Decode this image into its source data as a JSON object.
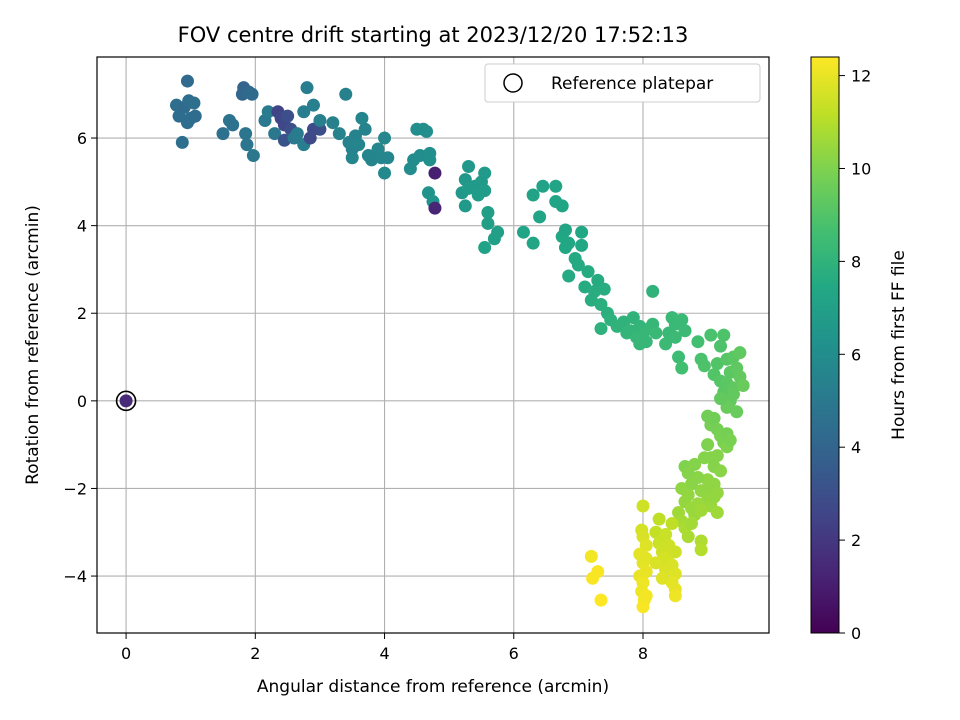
{
  "chart_data": {
    "type": "scatter",
    "title": "FOV centre drift starting at 2023/12/20 17:52:13",
    "xlabel": "Angular distance from reference (arcmin)",
    "ylabel": "Rotation from reference (arcmin)",
    "xlim": [
      -0.45,
      9.95
    ],
    "ylim": [
      -5.3,
      7.85
    ],
    "xticks": [
      0,
      2,
      4,
      6,
      8
    ],
    "yticks": [
      -4,
      -2,
      0,
      2,
      4,
      6
    ],
    "xtick_labels": [
      "0",
      "2",
      "4",
      "6",
      "8"
    ],
    "ytick_labels": [
      "−4",
      "−2",
      "0",
      "2",
      "4",
      "6"
    ],
    "grid": true,
    "legend": {
      "label": "Reference platepar",
      "position": "top-right"
    },
    "reference_point": {
      "x": 0,
      "y": 0
    },
    "colorbar": {
      "label": "Hours from first FF file",
      "range": [
        0,
        12.4
      ],
      "ticks": [
        0,
        2,
        4,
        6,
        8,
        10,
        12
      ],
      "tick_labels": [
        "0",
        "2",
        "4",
        "6",
        "8",
        "10",
        "12"
      ],
      "colormap": "viridis"
    },
    "points": [
      {
        "x": 0.0,
        "y": 0.0,
        "h": 1.5
      },
      {
        "x": 0.78,
        "y": 6.75,
        "h": 4.5
      },
      {
        "x": 0.82,
        "y": 6.5,
        "h": 4.4
      },
      {
        "x": 0.9,
        "y": 6.7,
        "h": 4.3
      },
      {
        "x": 0.95,
        "y": 6.35,
        "h": 4.4
      },
      {
        "x": 0.97,
        "y": 6.85,
        "h": 4.4
      },
      {
        "x": 1.05,
        "y": 6.8,
        "h": 4.5
      },
      {
        "x": 1.07,
        "y": 6.5,
        "h": 4.4
      },
      {
        "x": 0.95,
        "y": 7.3,
        "h": 4.3
      },
      {
        "x": 0.87,
        "y": 5.9,
        "h": 4.5
      },
      {
        "x": 1.0,
        "y": 6.45,
        "h": 4.4
      },
      {
        "x": 1.5,
        "y": 6.1,
        "h": 4.6
      },
      {
        "x": 1.6,
        "y": 6.4,
        "h": 4.7
      },
      {
        "x": 1.65,
        "y": 6.3,
        "h": 4.6
      },
      {
        "x": 1.8,
        "y": 7.0,
        "h": 4.1
      },
      {
        "x": 1.82,
        "y": 7.15,
        "h": 4.0
      },
      {
        "x": 1.85,
        "y": 6.1,
        "h": 4.8
      },
      {
        "x": 1.87,
        "y": 5.85,
        "h": 4.8
      },
      {
        "x": 1.9,
        "y": 7.05,
        "h": 4.2
      },
      {
        "x": 1.95,
        "y": 7.0,
        "h": 4.3
      },
      {
        "x": 1.97,
        "y": 5.6,
        "h": 4.9
      },
      {
        "x": 2.15,
        "y": 6.4,
        "h": 5.0
      },
      {
        "x": 2.2,
        "y": 6.6,
        "h": 5.1
      },
      {
        "x": 2.3,
        "y": 6.1,
        "h": 4.9
      },
      {
        "x": 2.35,
        "y": 6.6,
        "h": 2.5
      },
      {
        "x": 2.4,
        "y": 6.45,
        "h": 2.6
      },
      {
        "x": 2.45,
        "y": 6.3,
        "h": 2.6
      },
      {
        "x": 2.5,
        "y": 6.5,
        "h": 3.0
      },
      {
        "x": 2.55,
        "y": 6.2,
        "h": 3.0
      },
      {
        "x": 2.45,
        "y": 5.95,
        "h": 3.2
      },
      {
        "x": 2.6,
        "y": 6.0,
        "h": 5.0
      },
      {
        "x": 2.65,
        "y": 6.1,
        "h": 5.1
      },
      {
        "x": 2.75,
        "y": 6.6,
        "h": 5.2
      },
      {
        "x": 2.8,
        "y": 7.15,
        "h": 5.2
      },
      {
        "x": 2.75,
        "y": 5.85,
        "h": 5.2
      },
      {
        "x": 2.85,
        "y": 6.0,
        "h": 2.7
      },
      {
        "x": 2.9,
        "y": 6.2,
        "h": 2.8
      },
      {
        "x": 3.0,
        "y": 6.2,
        "h": 2.9
      },
      {
        "x": 2.9,
        "y": 6.75,
        "h": 5.3
      },
      {
        "x": 3.0,
        "y": 6.4,
        "h": 5.3
      },
      {
        "x": 3.2,
        "y": 6.35,
        "h": 5.4
      },
      {
        "x": 3.3,
        "y": 6.1,
        "h": 5.5
      },
      {
        "x": 3.4,
        "y": 7.0,
        "h": 5.4
      },
      {
        "x": 3.45,
        "y": 5.9,
        "h": 5.5
      },
      {
        "x": 3.5,
        "y": 5.75,
        "h": 5.5
      },
      {
        "x": 3.5,
        "y": 5.55,
        "h": 5.6
      },
      {
        "x": 3.55,
        "y": 6.05,
        "h": 5.5
      },
      {
        "x": 3.6,
        "y": 5.85,
        "h": 5.6
      },
      {
        "x": 3.65,
        "y": 6.45,
        "h": 5.6
      },
      {
        "x": 3.7,
        "y": 6.2,
        "h": 5.5
      },
      {
        "x": 3.75,
        "y": 5.6,
        "h": 5.6
      },
      {
        "x": 3.8,
        "y": 5.5,
        "h": 5.6
      },
      {
        "x": 3.9,
        "y": 5.75,
        "h": 5.7
      },
      {
        "x": 3.95,
        "y": 5.55,
        "h": 5.7
      },
      {
        "x": 4.0,
        "y": 6.0,
        "h": 5.7
      },
      {
        "x": 4.0,
        "y": 5.2,
        "h": 5.8
      },
      {
        "x": 4.05,
        "y": 5.55,
        "h": 5.7
      },
      {
        "x": 4.4,
        "y": 5.3,
        "h": 6.0
      },
      {
        "x": 4.45,
        "y": 5.5,
        "h": 6.0
      },
      {
        "x": 4.5,
        "y": 6.2,
        "h": 6.1
      },
      {
        "x": 4.55,
        "y": 5.6,
        "h": 6.0
      },
      {
        "x": 4.6,
        "y": 6.2,
        "h": 6.1
      },
      {
        "x": 4.65,
        "y": 6.15,
        "h": 6.1
      },
      {
        "x": 4.7,
        "y": 5.65,
        "h": 6.1
      },
      {
        "x": 4.7,
        "y": 5.5,
        "h": 6.1
      },
      {
        "x": 4.68,
        "y": 4.75,
        "h": 6.3
      },
      {
        "x": 4.75,
        "y": 4.55,
        "h": 6.4
      },
      {
        "x": 4.78,
        "y": 5.2,
        "h": 1.1
      },
      {
        "x": 4.78,
        "y": 4.4,
        "h": 1.3
      },
      {
        "x": 5.2,
        "y": 4.75,
        "h": 6.6
      },
      {
        "x": 5.25,
        "y": 5.05,
        "h": 6.6
      },
      {
        "x": 5.25,
        "y": 4.45,
        "h": 6.7
      },
      {
        "x": 5.3,
        "y": 5.35,
        "h": 6.6
      },
      {
        "x": 5.3,
        "y": 4.85,
        "h": 6.7
      },
      {
        "x": 5.4,
        "y": 4.9,
        "h": 6.7
      },
      {
        "x": 5.45,
        "y": 4.7,
        "h": 6.8
      },
      {
        "x": 5.5,
        "y": 5.0,
        "h": 6.7
      },
      {
        "x": 5.55,
        "y": 5.2,
        "h": 6.7
      },
      {
        "x": 5.55,
        "y": 4.8,
        "h": 6.8
      },
      {
        "x": 5.6,
        "y": 4.3,
        "h": 6.9
      },
      {
        "x": 5.6,
        "y": 4.05,
        "h": 6.9
      },
      {
        "x": 5.7,
        "y": 3.7,
        "h": 7.0
      },
      {
        "x": 5.75,
        "y": 3.85,
        "h": 7.0
      },
      {
        "x": 5.55,
        "y": 3.5,
        "h": 7.1
      },
      {
        "x": 6.15,
        "y": 3.85,
        "h": 7.2
      },
      {
        "x": 6.3,
        "y": 3.6,
        "h": 7.3
      },
      {
        "x": 6.3,
        "y": 4.7,
        "h": 7.1
      },
      {
        "x": 6.4,
        "y": 4.2,
        "h": 7.2
      },
      {
        "x": 6.45,
        "y": 4.9,
        "h": 7.1
      },
      {
        "x": 6.65,
        "y": 4.9,
        "h": 7.2
      },
      {
        "x": 6.65,
        "y": 4.55,
        "h": 7.2
      },
      {
        "x": 6.75,
        "y": 4.45,
        "h": 7.3
      },
      {
        "x": 6.75,
        "y": 3.75,
        "h": 7.4
      },
      {
        "x": 6.8,
        "y": 3.5,
        "h": 7.4
      },
      {
        "x": 6.8,
        "y": 3.9,
        "h": 7.3
      },
      {
        "x": 6.85,
        "y": 3.6,
        "h": 7.4
      },
      {
        "x": 6.85,
        "y": 2.85,
        "h": 7.5
      },
      {
        "x": 6.95,
        "y": 3.25,
        "h": 7.5
      },
      {
        "x": 7.0,
        "y": 3.1,
        "h": 7.5
      },
      {
        "x": 7.05,
        "y": 3.55,
        "h": 7.4
      },
      {
        "x": 7.05,
        "y": 3.85,
        "h": 7.4
      },
      {
        "x": 7.1,
        "y": 2.6,
        "h": 7.6
      },
      {
        "x": 7.15,
        "y": 2.95,
        "h": 7.6
      },
      {
        "x": 7.2,
        "y": 2.3,
        "h": 7.7
      },
      {
        "x": 7.25,
        "y": 2.5,
        "h": 7.7
      },
      {
        "x": 7.3,
        "y": 2.75,
        "h": 7.6
      },
      {
        "x": 7.35,
        "y": 2.2,
        "h": 7.8
      },
      {
        "x": 7.35,
        "y": 1.65,
        "h": 7.9
      },
      {
        "x": 7.4,
        "y": 2.55,
        "h": 7.7
      },
      {
        "x": 7.45,
        "y": 2.0,
        "h": 7.8
      },
      {
        "x": 7.5,
        "y": 1.85,
        "h": 7.9
      },
      {
        "x": 7.6,
        "y": 1.7,
        "h": 8.0
      },
      {
        "x": 7.7,
        "y": 1.8,
        "h": 8.0
      },
      {
        "x": 7.75,
        "y": 1.55,
        "h": 8.1
      },
      {
        "x": 7.8,
        "y": 1.6,
        "h": 8.1
      },
      {
        "x": 7.85,
        "y": 1.9,
        "h": 8.0
      },
      {
        "x": 7.9,
        "y": 1.45,
        "h": 8.2
      },
      {
        "x": 7.95,
        "y": 1.3,
        "h": 8.2
      },
      {
        "x": 7.95,
        "y": 1.7,
        "h": 8.1
      },
      {
        "x": 8.0,
        "y": 1.5,
        "h": 8.2
      },
      {
        "x": 8.05,
        "y": 1.35,
        "h": 8.2
      },
      {
        "x": 8.1,
        "y": 1.65,
        "h": 8.2
      },
      {
        "x": 8.15,
        "y": 1.75,
        "h": 8.2
      },
      {
        "x": 8.15,
        "y": 2.5,
        "h": 8.0
      },
      {
        "x": 8.2,
        "y": 1.55,
        "h": 8.3
      },
      {
        "x": 8.35,
        "y": 1.3,
        "h": 8.4
      },
      {
        "x": 8.4,
        "y": 1.55,
        "h": 8.3
      },
      {
        "x": 8.45,
        "y": 1.9,
        "h": 8.3
      },
      {
        "x": 8.5,
        "y": 1.75,
        "h": 8.3
      },
      {
        "x": 8.5,
        "y": 1.45,
        "h": 8.4
      },
      {
        "x": 8.55,
        "y": 1.0,
        "h": 8.5
      },
      {
        "x": 8.6,
        "y": 1.85,
        "h": 8.3
      },
      {
        "x": 8.6,
        "y": 0.75,
        "h": 8.6
      },
      {
        "x": 8.65,
        "y": 1.6,
        "h": 8.4
      },
      {
        "x": 8.85,
        "y": 1.35,
        "h": 8.6
      },
      {
        "x": 8.9,
        "y": 0.95,
        "h": 8.8
      },
      {
        "x": 8.95,
        "y": 0.8,
        "h": 8.9
      },
      {
        "x": 9.05,
        "y": 1.5,
        "h": 8.8
      },
      {
        "x": 9.1,
        "y": 0.6,
        "h": 9.0
      },
      {
        "x": 9.15,
        "y": 0.85,
        "h": 9.0
      },
      {
        "x": 9.2,
        "y": 1.25,
        "h": 8.9
      },
      {
        "x": 9.2,
        "y": 0.45,
        "h": 9.1
      },
      {
        "x": 9.25,
        "y": 1.5,
        "h": 8.9
      },
      {
        "x": 9.25,
        "y": 0.2,
        "h": 9.2
      },
      {
        "x": 9.3,
        "y": 0.95,
        "h": 9.1
      },
      {
        "x": 9.3,
        "y": 0.4,
        "h": 9.2
      },
      {
        "x": 9.35,
        "y": 0.65,
        "h": 9.2
      },
      {
        "x": 9.35,
        "y": 0.0,
        "h": 9.4
      },
      {
        "x": 9.4,
        "y": 1.0,
        "h": 9.2
      },
      {
        "x": 9.4,
        "y": 0.3,
        "h": 9.3
      },
      {
        "x": 9.45,
        "y": 0.75,
        "h": 9.3
      },
      {
        "x": 9.45,
        "y": -0.25,
        "h": 9.5
      },
      {
        "x": 9.5,
        "y": 0.55,
        "h": 9.4
      },
      {
        "x": 9.5,
        "y": 1.1,
        "h": 9.3
      },
      {
        "x": 9.55,
        "y": 0.35,
        "h": 9.5
      },
      {
        "x": 9.4,
        "y": 0.15,
        "h": 9.4
      },
      {
        "x": 9.3,
        "y": -0.15,
        "h": 9.5
      },
      {
        "x": 9.2,
        "y": 0.05,
        "h": 9.4
      },
      {
        "x": 9.0,
        "y": -0.35,
        "h": 9.7
      },
      {
        "x": 9.05,
        "y": -0.55,
        "h": 9.8
      },
      {
        "x": 9.1,
        "y": -0.4,
        "h": 9.7
      },
      {
        "x": 9.15,
        "y": -0.65,
        "h": 9.8
      },
      {
        "x": 9.2,
        "y": -0.8,
        "h": 9.9
      },
      {
        "x": 9.25,
        "y": -0.95,
        "h": 9.9
      },
      {
        "x": 9.3,
        "y": -0.75,
        "h": 9.8
      },
      {
        "x": 9.3,
        "y": -1.05,
        "h": 10.0
      },
      {
        "x": 9.35,
        "y": -0.9,
        "h": 9.9
      },
      {
        "x": 9.0,
        "y": -1.0,
        "h": 10.0
      },
      {
        "x": 9.05,
        "y": -1.3,
        "h": 10.1
      },
      {
        "x": 9.1,
        "y": -1.5,
        "h": 10.1
      },
      {
        "x": 9.15,
        "y": -1.25,
        "h": 10.1
      },
      {
        "x": 9.2,
        "y": -1.6,
        "h": 10.2
      },
      {
        "x": 9.0,
        "y": -1.8,
        "h": 10.3
      },
      {
        "x": 9.05,
        "y": -2.0,
        "h": 10.3
      },
      {
        "x": 9.1,
        "y": -1.9,
        "h": 10.3
      },
      {
        "x": 9.15,
        "y": -2.1,
        "h": 10.4
      },
      {
        "x": 9.0,
        "y": -2.25,
        "h": 10.4
      },
      {
        "x": 9.05,
        "y": -2.4,
        "h": 10.5
      },
      {
        "x": 9.1,
        "y": -2.2,
        "h": 10.4
      },
      {
        "x": 9.15,
        "y": -2.55,
        "h": 10.6
      },
      {
        "x": 8.65,
        "y": -1.5,
        "h": 10.0
      },
      {
        "x": 8.7,
        "y": -1.65,
        "h": 10.1
      },
      {
        "x": 8.75,
        "y": -1.9,
        "h": 10.2
      },
      {
        "x": 8.8,
        "y": -1.45,
        "h": 10.1
      },
      {
        "x": 8.85,
        "y": -1.75,
        "h": 10.2
      },
      {
        "x": 8.9,
        "y": -2.05,
        "h": 10.3
      },
      {
        "x": 8.95,
        "y": -1.3,
        "h": 10.1
      },
      {
        "x": 8.6,
        "y": -2.0,
        "h": 10.3
      },
      {
        "x": 8.65,
        "y": -2.3,
        "h": 10.4
      },
      {
        "x": 8.7,
        "y": -2.15,
        "h": 10.4
      },
      {
        "x": 8.75,
        "y": -2.45,
        "h": 10.5
      },
      {
        "x": 8.8,
        "y": -2.6,
        "h": 10.5
      },
      {
        "x": 8.85,
        "y": -2.35,
        "h": 10.5
      },
      {
        "x": 8.9,
        "y": -2.5,
        "h": 10.6
      },
      {
        "x": 8.55,
        "y": -2.55,
        "h": 10.6
      },
      {
        "x": 8.6,
        "y": -2.75,
        "h": 10.7
      },
      {
        "x": 8.65,
        "y": -2.9,
        "h": 10.8
      },
      {
        "x": 8.7,
        "y": -3.1,
        "h": 10.8
      },
      {
        "x": 8.75,
        "y": -2.8,
        "h": 10.7
      },
      {
        "x": 8.9,
        "y": -3.2,
        "h": 10.9
      },
      {
        "x": 8.9,
        "y": -3.4,
        "h": 11.0
      },
      {
        "x": 7.98,
        "y": -2.95,
        "h": 11.6
      },
      {
        "x": 8.0,
        "y": -3.1,
        "h": 11.7
      },
      {
        "x": 8.0,
        "y": -2.4,
        "h": 11.5
      },
      {
        "x": 8.05,
        "y": -3.3,
        "h": 11.8
      },
      {
        "x": 7.95,
        "y": -3.5,
        "h": 11.9
      },
      {
        "x": 8.0,
        "y": -3.7,
        "h": 11.9
      },
      {
        "x": 8.05,
        "y": -3.9,
        "h": 12.0
      },
      {
        "x": 7.95,
        "y": -4.0,
        "h": 12.0
      },
      {
        "x": 8.0,
        "y": -4.15,
        "h": 12.1
      },
      {
        "x": 7.98,
        "y": -4.35,
        "h": 12.1
      },
      {
        "x": 8.02,
        "y": -4.55,
        "h": 12.2
      },
      {
        "x": 8.0,
        "y": -4.7,
        "h": 12.3
      },
      {
        "x": 8.05,
        "y": -3.6,
        "h": 11.9
      },
      {
        "x": 8.05,
        "y": -4.45,
        "h": 12.2
      },
      {
        "x": 8.2,
        "y": -3.0,
        "h": 11.3
      },
      {
        "x": 8.25,
        "y": -3.25,
        "h": 11.4
      },
      {
        "x": 8.3,
        "y": -3.45,
        "h": 11.5
      },
      {
        "x": 8.25,
        "y": -2.7,
        "h": 11.2
      },
      {
        "x": 8.3,
        "y": -3.65,
        "h": 11.6
      },
      {
        "x": 8.35,
        "y": -3.85,
        "h": 11.7
      },
      {
        "x": 8.35,
        "y": -3.05,
        "h": 11.4
      },
      {
        "x": 8.4,
        "y": -3.5,
        "h": 11.6
      },
      {
        "x": 8.45,
        "y": -3.75,
        "h": 11.7
      },
      {
        "x": 8.45,
        "y": -2.8,
        "h": 11.2
      },
      {
        "x": 8.5,
        "y": -3.45,
        "h": 11.5
      },
      {
        "x": 8.5,
        "y": -3.95,
        "h": 11.8
      },
      {
        "x": 8.5,
        "y": -4.3,
        "h": 12.0
      },
      {
        "x": 8.5,
        "y": -4.45,
        "h": 12.1
      },
      {
        "x": 8.45,
        "y": -4.15,
        "h": 11.9
      },
      {
        "x": 8.4,
        "y": -3.3,
        "h": 11.5
      },
      {
        "x": 8.3,
        "y": -4.05,
        "h": 11.8
      },
      {
        "x": 8.2,
        "y": -3.7,
        "h": 11.7
      },
      {
        "x": 7.2,
        "y": -3.55,
        "h": 12.2
      },
      {
        "x": 7.22,
        "y": -4.05,
        "h": 12.3
      },
      {
        "x": 7.3,
        "y": -3.9,
        "h": 12.3
      },
      {
        "x": 7.35,
        "y": -4.55,
        "h": 12.4
      }
    ]
  }
}
